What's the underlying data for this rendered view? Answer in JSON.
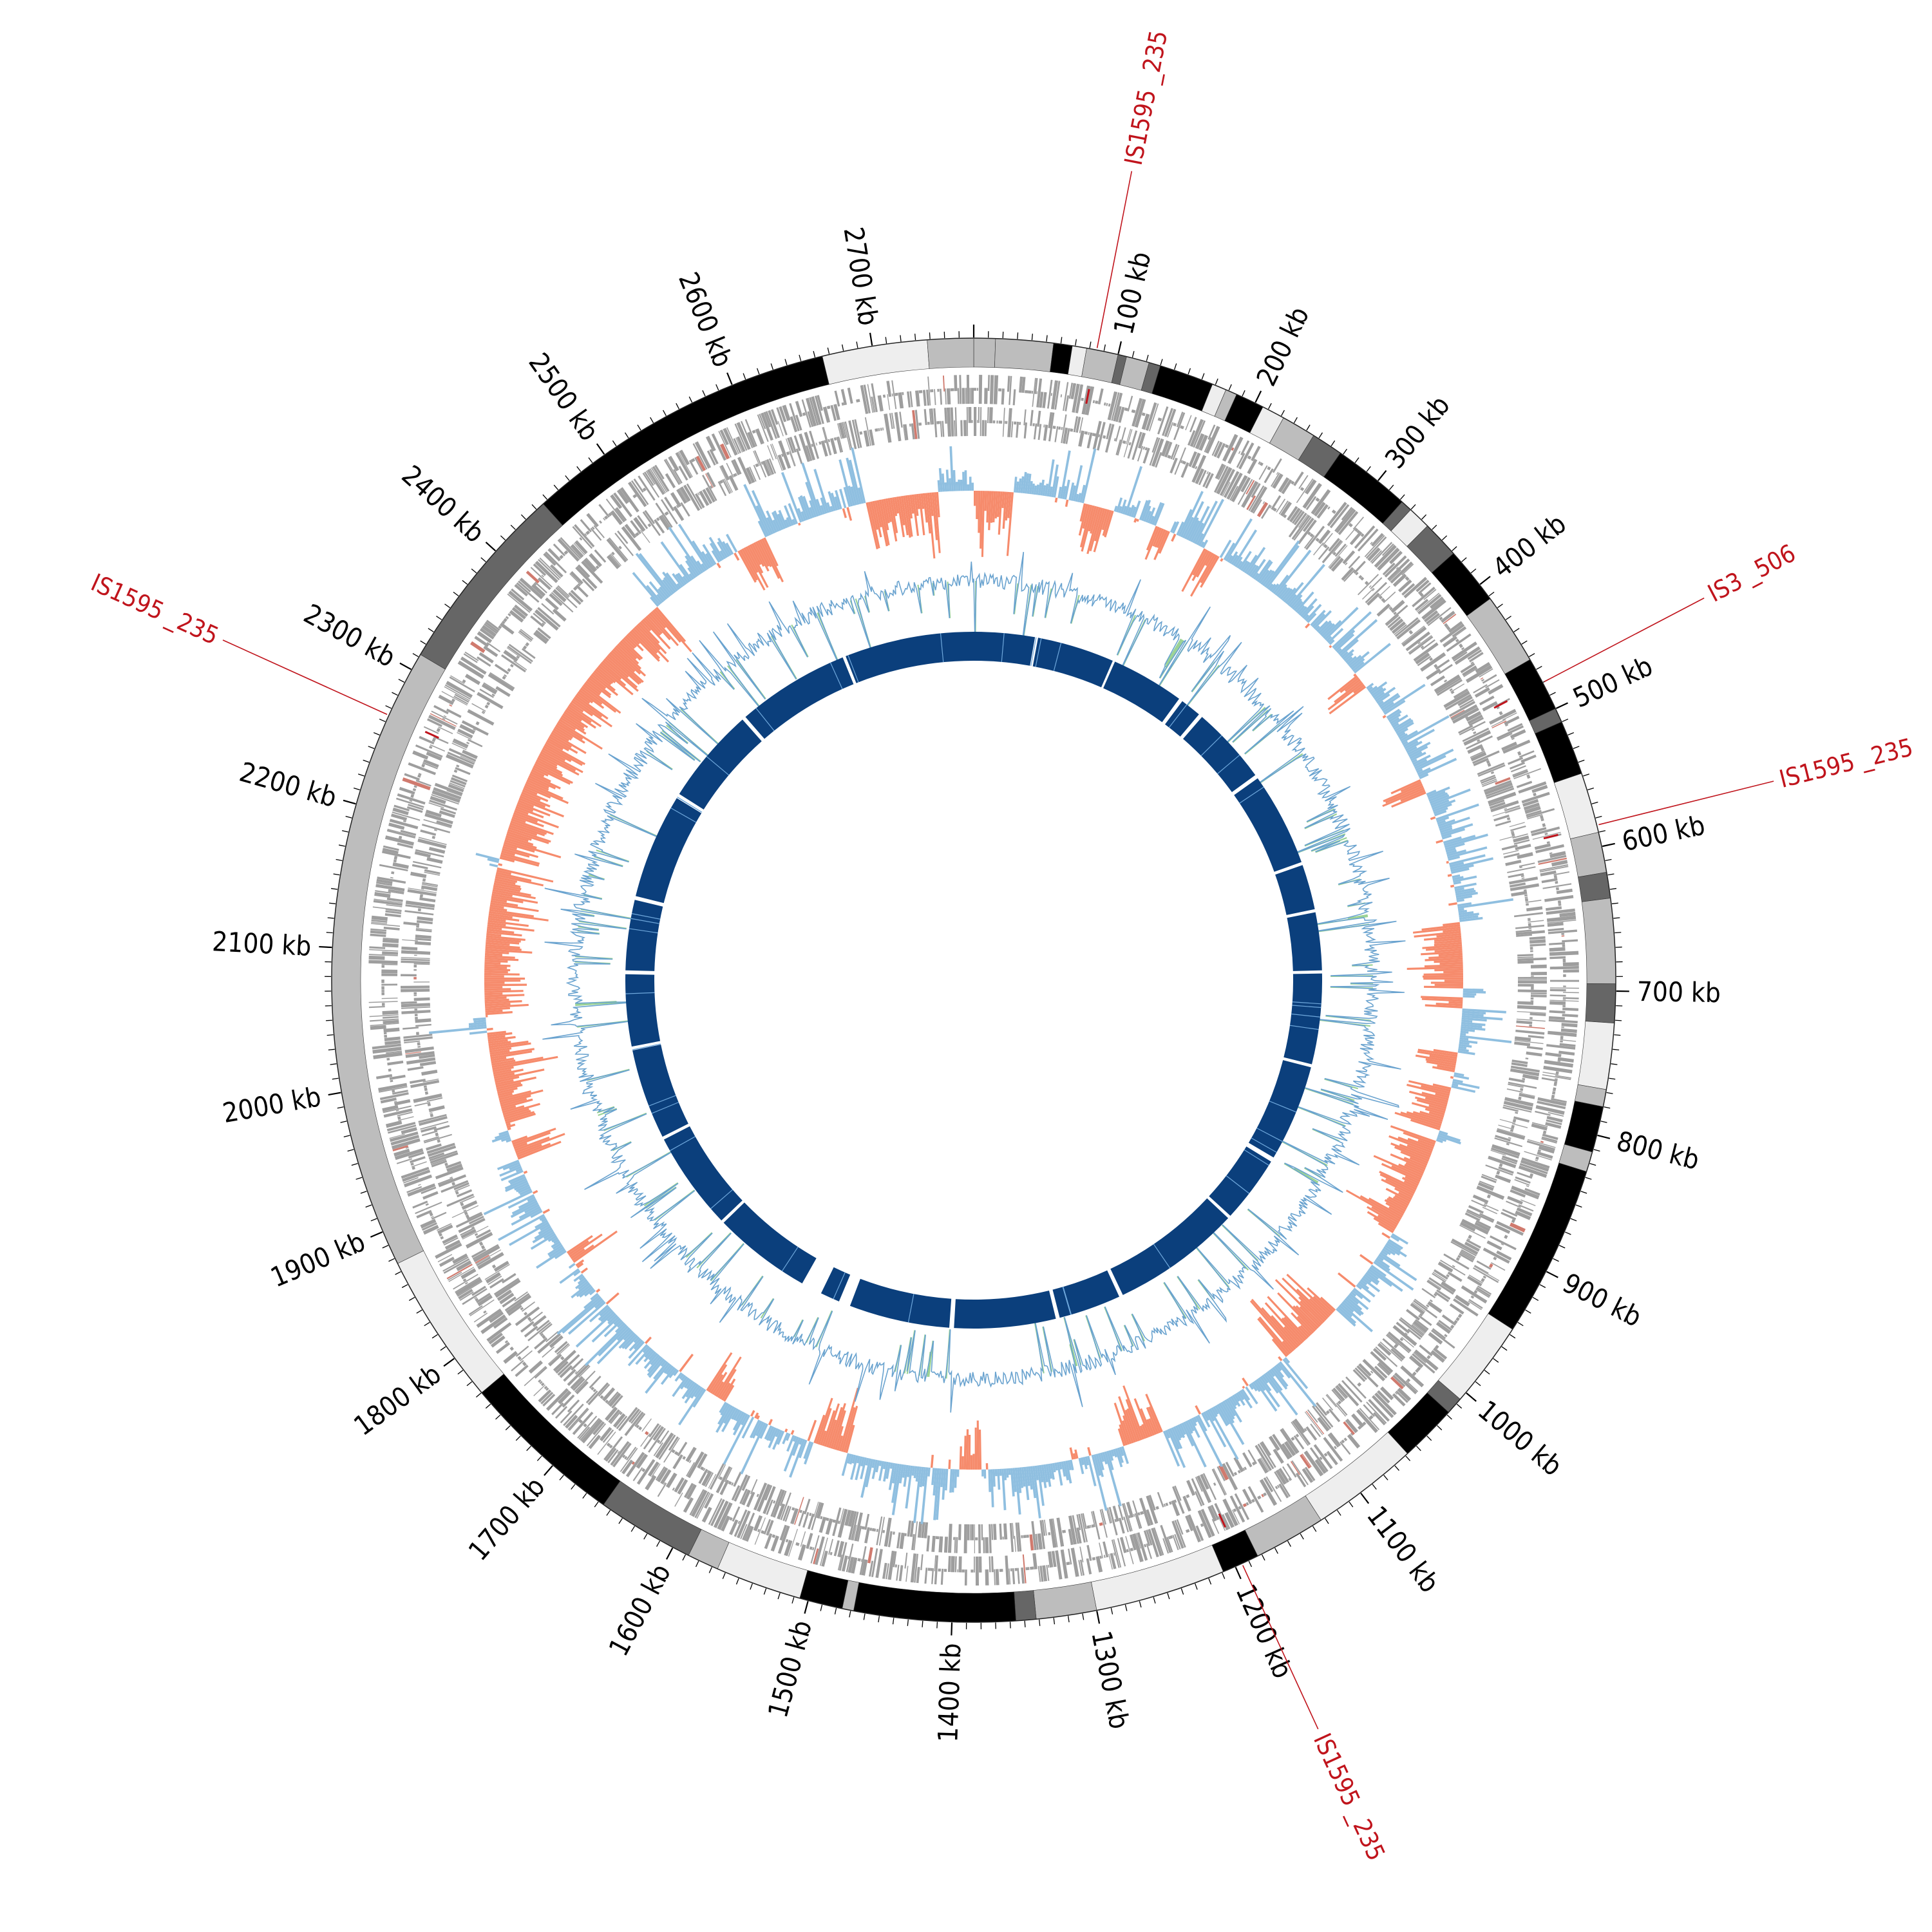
{
  "genome": {
    "length_kb": 2770,
    "tick_labels": [
      "100 kb",
      "200 kb",
      "300 kb",
      "400 kb",
      "500 kb",
      "600 kb",
      "700 kb",
      "800 kb",
      "900 kb",
      "1000 kb",
      "1100 kb",
      "1200 kb",
      "1300 kb",
      "1400 kb",
      "1500 kb",
      "1600 kb",
      "1700 kb",
      "1800 kb",
      "1900 kb",
      "2000 kb",
      "2100 kb",
      "2200 kb",
      "2300 kb",
      "2400 kb",
      "2500 kb",
      "2600 kb",
      "2700 kb"
    ]
  },
  "insertion_sequences": [
    {
      "label": "IS1595 _235",
      "position_kb": 85
    },
    {
      "label": "IS3 _506",
      "position_kb": 480
    },
    {
      "label": "IS1595 _235",
      "position_kb": 585
    },
    {
      "label": "IS1595 _235",
      "position_kb": 1195
    },
    {
      "label": "IS1595 _235",
      "position_kb": 2265
    }
  ],
  "outer_segments": [
    [
      0,
      15,
      "#bdbdbd"
    ],
    [
      15,
      55,
      "#bdbdbd"
    ],
    [
      55,
      68,
      "#000000"
    ],
    [
      68,
      78,
      "#eeeeee"
    ],
    [
      78,
      100,
      "#bdbdbd"
    ],
    [
      100,
      106,
      "#666666"
    ],
    [
      106,
      122,
      "#bdbdbd"
    ],
    [
      122,
      130,
      "#666666"
    ],
    [
      130,
      168,
      "#000000"
    ],
    [
      168,
      178,
      "#eeeeee"
    ],
    [
      178,
      186,
      "#bdbdbd"
    ],
    [
      186,
      206,
      "#000000"
    ],
    [
      206,
      222,
      "#eeeeee"
    ],
    [
      222,
      246,
      "#bdbdbd"
    ],
    [
      246,
      268,
      "#666666"
    ],
    [
      268,
      322,
      "#000000"
    ],
    [
      322,
      330,
      "#666666"
    ],
    [
      330,
      346,
      "#eeeeee"
    ],
    [
      346,
      372,
      "#666666"
    ],
    [
      372,
      412,
      "#000000"
    ],
    [
      412,
      462,
      "#bdbdbd"
    ],
    [
      462,
      500,
      "#000000"
    ],
    [
      500,
      510,
      "#666666"
    ],
    [
      510,
      548,
      "#000000"
    ],
    [
      548,
      590,
      "#eeeeee"
    ],
    [
      590,
      618,
      "#bdbdbd"
    ],
    [
      618,
      636,
      "#666666"
    ],
    [
      636,
      695,
      "#bdbdbd"
    ],
    [
      695,
      722,
      "#666666"
    ],
    [
      722,
      768,
      "#eeeeee"
    ],
    [
      768,
      780,
      "#bdbdbd"
    ],
    [
      780,
      812,
      "#000000"
    ],
    [
      812,
      826,
      "#bdbdbd"
    ],
    [
      826,
      946,
      "#000000"
    ],
    [
      946,
      1006,
      "#eeeeee"
    ],
    [
      1006,
      1018,
      "#666666"
    ],
    [
      1018,
      1058,
      "#000000"
    ],
    [
      1058,
      1133,
      "#eeeeee"
    ],
    [
      1133,
      1183,
      "#bdbdbd"
    ],
    [
      1183,
      1209,
      "#000000"
    ],
    [
      1209,
      1300,
      "#eeeeee"
    ],
    [
      1300,
      1342,
      "#bdbdbd"
    ],
    [
      1342,
      1356,
      "#666666"
    ],
    [
      1356,
      1468,
      "#000000"
    ],
    [
      1468,
      1476,
      "#bdbdbd"
    ],
    [
      1476,
      1506,
      "#000000"
    ],
    [
      1506,
      1566,
      "#eeeeee"
    ],
    [
      1566,
      1588,
      "#bdbdbd"
    ],
    [
      1588,
      1656,
      "#666666"
    ],
    [
      1656,
      1770,
      "#000000"
    ],
    [
      1770,
      1876,
      "#eeeeee"
    ],
    [
      1876,
      2312,
      "#bdbdbd"
    ],
    [
      2312,
      2446,
      "#666666"
    ],
    [
      2446,
      2665,
      "#000000"
    ],
    [
      2665,
      2738,
      "#eeeeee"
    ],
    [
      2738,
      2770,
      "#bdbdbd"
    ]
  ],
  "inner_segments": [
    [
      0,
      78,
      "#0b3f7c"
    ],
    [
      82,
      181,
      "#0b3f7c"
    ],
    [
      184,
      278,
      "#0b3f7c"
    ],
    [
      283,
      310,
      "#0b3f7c"
    ],
    [
      315,
      415,
      "#0b3f7c"
    ],
    [
      420,
      540,
      "#0b3f7c"
    ],
    [
      544,
      602,
      "#0b3f7c"
    ],
    [
      606,
      680,
      "#0b3f7c"
    ],
    [
      684,
      800,
      "#0b3f7c"
    ],
    [
      804,
      928,
      "#0b3f7c"
    ],
    [
      934,
      1020,
      "#0b3f7c"
    ],
    [
      1024,
      1190,
      "#0b3f7c"
    ],
    [
      1195,
      1275,
      "#0b3f7c"
    ],
    [
      1280,
      1410,
      "#0b3f7c"
    ],
    [
      1416,
      1545,
      "#0b3f7c"
    ],
    [
      1560,
      1585,
      "#0b3f7c"
    ],
    [
      1612,
      1738,
      "#0b3f7c"
    ],
    [
      1742,
      1868,
      "#0b3f7c"
    ],
    [
      1872,
      1988,
      "#0b3f7c"
    ],
    [
      1993,
      2085,
      "#0b3f7c"
    ],
    [
      2090,
      2180,
      "#0b3f7c"
    ],
    [
      2185,
      2320,
      "#0b3f7c"
    ],
    [
      2326,
      2450,
      "#0b3f7c"
    ],
    [
      2455,
      2600,
      "#0b3f7c"
    ],
    [
      2604,
      2770,
      "#0b3f7c"
    ]
  ],
  "orange_spans": [
    [
      0,
      35
    ],
    [
      100,
      128
    ],
    [
      168,
      182
    ],
    [
      215,
      232
    ],
    [
      395,
      410
    ],
    [
      505,
      520
    ],
    [
      640,
      700
    ],
    [
      708,
      718
    ],
    [
      758,
      775
    ],
    [
      790,
      830
    ],
    [
      840,
      932
    ],
    [
      1018,
      1080
    ],
    [
      1210,
      1248
    ],
    [
      1378,
      1398
    ],
    [
      1500,
      1532
    ],
    [
      1620,
      1640
    ],
    [
      1806,
      1818
    ],
    [
      1912,
      1930
    ],
    [
      1945,
      2030
    ],
    [
      2045,
      2180
    ],
    [
      2188,
      2460
    ],
    [
      2548,
      2575
    ],
    [
      2672,
      2738
    ]
  ],
  "colors": {
    "outer_ring_stroke": "#222222",
    "inner_ring": "#0b3f7c",
    "gc_positive": "#8fbfe0",
    "gc_negative": "#f68b6c",
    "gc_line": "#6aa3cf",
    "skew_line": "#6aa3cf",
    "skew_fill": "#8dcc86",
    "feature_grey": "#9e9e9e",
    "feature_highlight": "#d07a6e",
    "is_label": "#c0141c",
    "tick_label": "#000000"
  }
}
